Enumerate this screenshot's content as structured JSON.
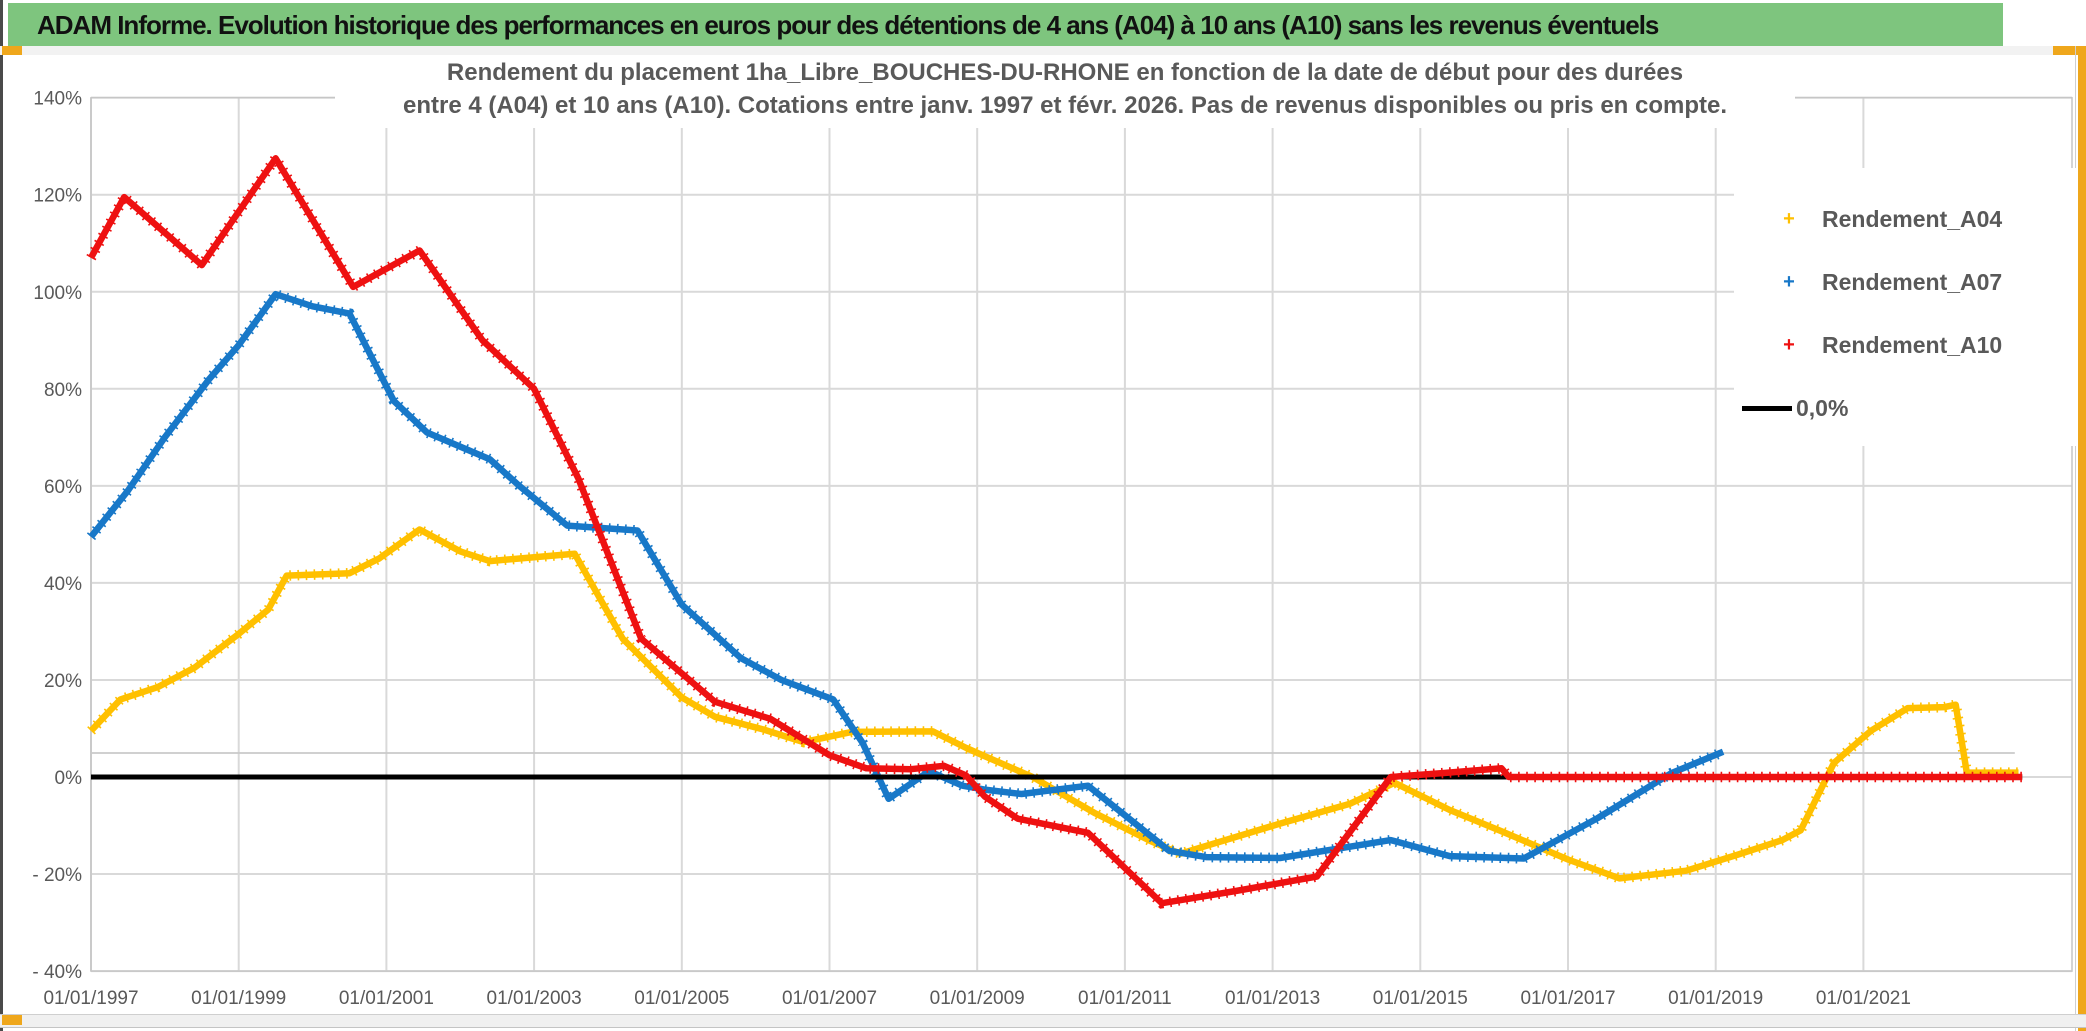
{
  "window": {
    "title": "ADAM Informe. Evolution historique des performances en euros pour des détentions de 4 ans (A04) à 10 ans (A10) sans les revenus éventuels"
  },
  "colors": {
    "header_green": "#7EC57E",
    "accent_orange": "#EFA71C",
    "series_a04": "#FFC000",
    "series_a07": "#1878C8",
    "series_a10": "#EE1111",
    "zero_line": "#000000",
    "reference_line": "#C9C9C9",
    "gridline": "#D9D9D9",
    "plot_border": "#C6C6C6",
    "axis_text": "#595959"
  },
  "chart_data": {
    "type": "line",
    "title_line1": "Rendement du placement 1ha_Libre_BOUCHES-DU-RHONE en fonction de la date de début pour des durées",
    "title_line2": "entre 4 (A04) et 10 ans (A10). Cotations entre janv. 1997 et févr. 2026. Pas de revenus disponibles ou pris en compte.",
    "xlabel": "",
    "ylabel": "",
    "grid": true,
    "legend_position": "right-inside",
    "ylim": [
      -40,
      140
    ],
    "xlim_years": [
      1997.0,
      2023.83
    ],
    "y_tick_values": [
      140,
      120,
      100,
      80,
      60,
      40,
      20,
      0,
      -20,
      -40
    ],
    "y_tick_labels": [
      "140%",
      "120%",
      "100%",
      "80%",
      "60%",
      "40%",
      "20%",
      "0%",
      "- 20%",
      "- 40%"
    ],
    "x_tick_years": [
      1997,
      1999,
      2001,
      2003,
      2005,
      2007,
      2009,
      2011,
      2013,
      2015,
      2017,
      2019,
      2021
    ],
    "x_tick_labels": [
      "01/01/1997",
      "01/01/1999",
      "01/01/2001",
      "01/01/2003",
      "01/01/2005",
      "01/01/2007",
      "01/01/2009",
      "01/01/2011",
      "01/01/2013",
      "01/01/2015",
      "01/01/2017",
      "01/01/2019",
      "01/01/2021"
    ],
    "reference_line_pct": 5,
    "legend": [
      {
        "label": "Rendement_A04",
        "marker": "+",
        "color_key": "series_a04"
      },
      {
        "label": "Rendement_A07",
        "marker": "+",
        "color_key": "series_a07"
      },
      {
        "label": "Rendement_A10",
        "marker": "+",
        "color_key": "series_a10"
      },
      {
        "label": "0,0%",
        "marker": "line",
        "color_key": "zero_line"
      }
    ],
    "series": [
      {
        "name": "Rendement_A04",
        "color_key": "series_a04",
        "markers": true,
        "points_year_pct": [
          [
            1997,
            9.5
          ],
          [
            1997.4,
            16
          ],
          [
            1997.9,
            18.5
          ],
          [
            1998.4,
            22.5
          ],
          [
            1999,
            29.5
          ],
          [
            1999.4,
            34.5
          ],
          [
            1999.65,
            41.5
          ],
          [
            2000.5,
            42
          ],
          [
            2000.9,
            45
          ],
          [
            2001.45,
            51
          ],
          [
            2002,
            46.5
          ],
          [
            2002.4,
            44.5
          ],
          [
            2003,
            45.3
          ],
          [
            2003.55,
            46
          ],
          [
            2004.2,
            28.5
          ],
          [
            2005,
            16.4
          ],
          [
            2005.45,
            12.4
          ],
          [
            2006.1,
            9.8
          ],
          [
            2006.65,
            7.2
          ],
          [
            2007.3,
            9.3
          ],
          [
            2008.4,
            9.4
          ],
          [
            2008.85,
            6
          ],
          [
            2009.1,
            4.3
          ],
          [
            2009.75,
            0
          ],
          [
            2010.6,
            -7.5
          ],
          [
            2011.35,
            -13.2
          ],
          [
            2011.75,
            -15.8
          ],
          [
            2013.1,
            -9.6
          ],
          [
            2014.05,
            -5.5
          ],
          [
            2014.65,
            -1.2
          ],
          [
            2015.4,
            -6.8
          ],
          [
            2016.1,
            -11.2
          ],
          [
            2017,
            -17
          ],
          [
            2017.7,
            -20.9
          ],
          [
            2018.6,
            -19.3
          ],
          [
            2019.3,
            -16
          ],
          [
            2019.9,
            -13
          ],
          [
            2020.15,
            -11
          ],
          [
            2020.6,
            2.9
          ],
          [
            2021.1,
            9.5
          ],
          [
            2021.6,
            14.2
          ],
          [
            2022.1,
            14.4
          ],
          [
            2022.25,
            14.9
          ],
          [
            2022.4,
            0.9
          ],
          [
            2023.1,
            0.9
          ]
        ]
      },
      {
        "name": "Rendement_A07",
        "color_key": "series_a07",
        "markers": true,
        "points_year_pct": [
          [
            1997,
            49.5
          ],
          [
            1997.5,
            59
          ],
          [
            1998,
            70
          ],
          [
            1998.6,
            82
          ],
          [
            1999,
            89
          ],
          [
            1999.5,
            99.5
          ],
          [
            2000,
            97
          ],
          [
            2000.5,
            95.5
          ],
          [
            2001.1,
            77.5
          ],
          [
            2001.55,
            71
          ],
          [
            2002.4,
            65.5
          ],
          [
            2002.8,
            60
          ],
          [
            2003.45,
            51.8
          ],
          [
            2004.4,
            50.8
          ],
          [
            2005,
            35.5
          ],
          [
            2005.8,
            24.5
          ],
          [
            2006.35,
            20
          ],
          [
            2007.05,
            16
          ],
          [
            2007.45,
            7
          ],
          [
            2007.8,
            -4.5
          ],
          [
            2008.35,
            1.2
          ],
          [
            2008.8,
            -1.8
          ],
          [
            2009.1,
            -2.6
          ],
          [
            2009.6,
            -3.5
          ],
          [
            2010.5,
            -1.8
          ],
          [
            2011.6,
            -15.2
          ],
          [
            2012.1,
            -16.5
          ],
          [
            2013.1,
            -16.7
          ],
          [
            2014.6,
            -13
          ],
          [
            2015.4,
            -16.3
          ],
          [
            2016.4,
            -16.8
          ],
          [
            2017.4,
            -8.5
          ],
          [
            2018.4,
            0.8
          ],
          [
            2019.1,
            5.2
          ]
        ]
      },
      {
        "name": "Rendement_A10",
        "color_key": "series_a10",
        "markers": true,
        "points_year_pct": [
          [
            1997,
            107
          ],
          [
            1997.45,
            119.5
          ],
          [
            1998.5,
            105.5
          ],
          [
            1999.5,
            127.5
          ],
          [
            2000.55,
            101
          ],
          [
            2001.45,
            108.5
          ],
          [
            2002.3,
            90
          ],
          [
            2003,
            80
          ],
          [
            2003.6,
            61.5
          ],
          [
            2004.45,
            28.5
          ],
          [
            2005.45,
            15.5
          ],
          [
            2006.2,
            12
          ],
          [
            2007,
            4.5
          ],
          [
            2007.5,
            1.8
          ],
          [
            2008.1,
            1.6
          ],
          [
            2008.55,
            2.3
          ],
          [
            2008.85,
            0.3
          ],
          [
            2009.1,
            -4
          ],
          [
            2009.55,
            -8.6
          ],
          [
            2010.5,
            -11.5
          ],
          [
            2011.5,
            -26
          ],
          [
            2012.5,
            -23.5
          ],
          [
            2013.6,
            -20.5
          ],
          [
            2014.6,
            0
          ],
          [
            2015.3,
            0.8
          ],
          [
            2016.1,
            1.8
          ],
          [
            2016.2,
            0
          ],
          [
            2023.15,
            0
          ]
        ]
      },
      {
        "name": "0,0%",
        "color_key": "zero_line",
        "markers": false,
        "points_year_pct": [
          [
            1997,
            0
          ],
          [
            2023.15,
            0
          ]
        ]
      }
    ]
  }
}
